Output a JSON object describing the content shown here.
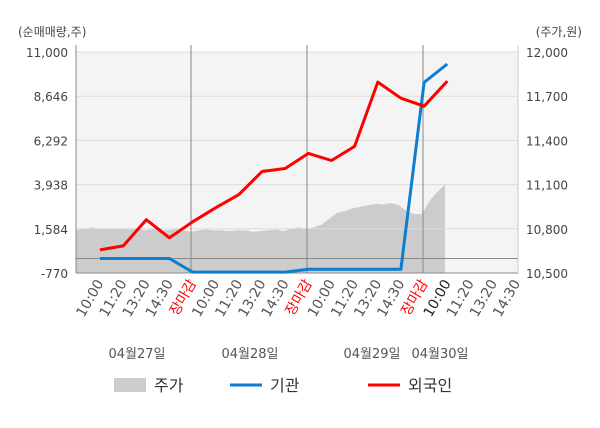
{
  "chart_data": {
    "type": "line",
    "left_axis_label": "(순매매량,주)",
    "right_axis_label": "(주가,원)",
    "left_ticks": [
      "11,000",
      "8,646",
      "6,292",
      "3,938",
      "1,584",
      "-770"
    ],
    "left_tick_values": [
      11000,
      8646,
      6292,
      3938,
      1584,
      -770
    ],
    "ylim_left": [
      -770,
      11000
    ],
    "right_ticks": [
      "12,000",
      "11,700",
      "11,400",
      "11,100",
      "10,800",
      "10,500"
    ],
    "right_tick_values": [
      12000,
      11700,
      11400,
      11100,
      10800,
      10500
    ],
    "ylim_right": [
      10500,
      12000
    ],
    "x_labels": [
      [
        "10:00",
        "11:20",
        "13:20",
        "14:30",
        "장마감"
      ],
      [
        "10:00",
        "11:20",
        "13:20",
        "14:30",
        "장마감"
      ],
      [
        "10:00",
        "11:20",
        "13:20",
        "14:30",
        "장마감"
      ],
      [
        "10:00",
        "11:20",
        "13:20",
        "14:30"
      ]
    ],
    "close_label": "장마감",
    "day_labels": [
      "04월27일",
      "04월28일",
      "04월29일",
      "04월30일"
    ],
    "grid": true,
    "legend_position": "bottom",
    "series": [
      {
        "name": "기관",
        "color": "#0a7fd1",
        "axis": "left",
        "values": [
          0,
          0,
          0,
          0,
          -720,
          -720,
          -720,
          -720,
          -720,
          -570,
          -570,
          -570,
          -570,
          -570,
          9380,
          10360
        ]
      },
      {
        "name": "외국인",
        "color": "#ff0000",
        "axis": "left",
        "values": [
          460,
          675,
          2066,
          1103,
          1959,
          2708,
          3403,
          4634,
          4794,
          5597,
          5222,
          5971,
          9395,
          8539,
          8111,
          9449
        ]
      }
    ],
    "price": {
      "name": "주가",
      "color": "#cccccc",
      "axis": "right",
      "values": [
        10790,
        10800,
        10810,
        10800,
        10800,
        10800,
        10800,
        10795,
        10800,
        10790,
        10800,
        10790,
        10790,
        10800,
        10790,
        10780,
        10790,
        10795,
        10790,
        10790,
        10785,
        10790,
        10790,
        10780,
        10785,
        10790,
        10795,
        10785,
        10800,
        10810,
        10800,
        10810,
        10830,
        10870,
        10910,
        10920,
        10940,
        10950,
        10960,
        10970,
        10965,
        10975,
        10960,
        10920,
        10900,
        10900,
        10990,
        11050,
        11100
      ]
    }
  },
  "legend": [
    {
      "label": "주가",
      "color": "#cccccc",
      "shape": "box"
    },
    {
      "label": "기관",
      "color": "#0a7fd1",
      "shape": "line"
    },
    {
      "label": "외국인",
      "color": "#ff0000",
      "shape": "line"
    }
  ]
}
